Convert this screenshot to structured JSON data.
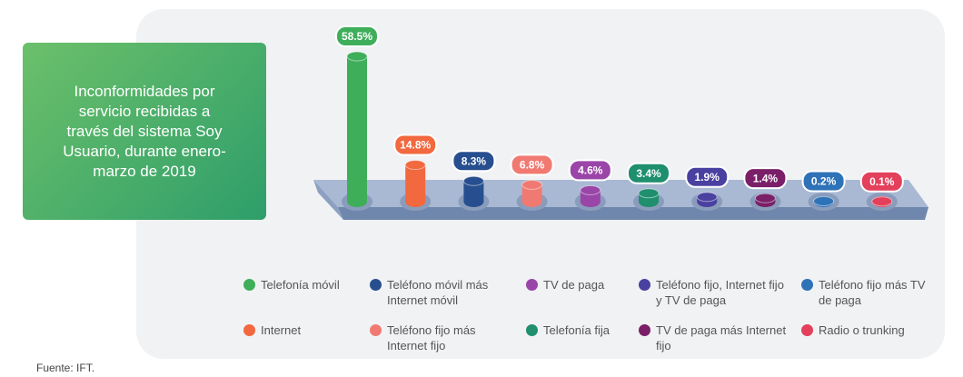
{
  "chart_data": {
    "type": "bar",
    "title": "Inconformidades por servicio recibidas a través del sistema Soy Usuario, durante enero-marzo de 2019",
    "categories": [
      "Telefonía móvil",
      "Internet",
      "Teléfono móvil más Internet móvil",
      "Teléfono fijo más Internet fijo",
      "TV de paga",
      "Telefonía fija",
      "Teléfono fijo, Internet fijo y TV de paga",
      "TV de paga más Internet fijo",
      "Teléfono fijo más TV de paga",
      "Radio o trunking"
    ],
    "values": [
      58.5,
      14.8,
      8.3,
      6.8,
      4.6,
      3.4,
      1.9,
      1.4,
      0.2,
      0.1
    ],
    "value_labels": [
      "58.5%",
      "14.8%",
      "8.3%",
      "6.8%",
      "4.6%",
      "3.4%",
      "1.9%",
      "1.4%",
      "0.2%",
      "0.1%"
    ],
    "colors": [
      "#3fae5a",
      "#f2683f",
      "#274f8f",
      "#f07a72",
      "#9a45a8",
      "#1f8f6e",
      "#4a40a0",
      "#7a1f68",
      "#2e72b8",
      "#e3405c"
    ],
    "source": "Fuente: IFT."
  }
}
